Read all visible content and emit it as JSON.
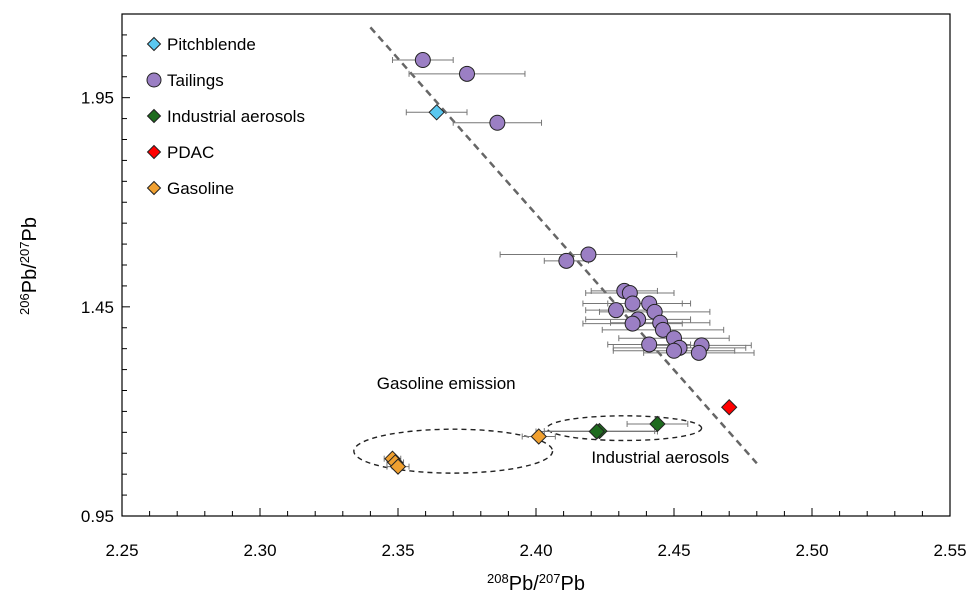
{
  "chart_data": {
    "type": "scatter",
    "title": "",
    "xlabel": {
      "base1": "",
      "sup1": "208",
      "mid": "Pb/",
      "sup2": "207",
      "end": "Pb"
    },
    "ylabel": {
      "sup1": "206",
      "mid": "Pb/",
      "sup2": "207",
      "end": "Pb"
    },
    "xlim": [
      2.25,
      2.55
    ],
    "ylim": [
      0.95,
      2.15
    ],
    "xticks": [
      "2.25",
      "2.30",
      "2.35",
      "2.40",
      "2.45",
      "2.50",
      "2.55"
    ],
    "yticks": [
      "0.95",
      "1.45",
      "1.95"
    ],
    "grid": false,
    "legend_position": "top-left",
    "series": [
      {
        "name": "Pitchblende",
        "marker": "diamond",
        "color": "#5bc8f0",
        "points": [
          {
            "x": 2.364,
            "y": 1.915,
            "xerr": 0.011
          }
        ]
      },
      {
        "name": "Tailings",
        "marker": "circle",
        "color": "#9b7fc4",
        "points": [
          {
            "x": 2.359,
            "y": 2.04,
            "xerr": 0.011
          },
          {
            "x": 2.375,
            "y": 2.007,
            "xerr": 0.021
          },
          {
            "x": 2.386,
            "y": 1.89,
            "xerr": 0.016
          },
          {
            "x": 2.411,
            "y": 1.56,
            "xerr": 0.008
          },
          {
            "x": 2.419,
            "y": 1.575,
            "xerr": 0.032
          },
          {
            "x": 2.432,
            "y": 1.488,
            "xerr": 0.012
          },
          {
            "x": 2.434,
            "y": 1.483,
            "xerr": 0.016
          },
          {
            "x": 2.435,
            "y": 1.458,
            "xerr": 0.018
          },
          {
            "x": 2.441,
            "y": 1.458,
            "xerr": 0.015
          },
          {
            "x": 2.429,
            "y": 1.442,
            "xerr": 0.011
          },
          {
            "x": 2.443,
            "y": 1.438,
            "xerr": 0.02
          },
          {
            "x": 2.437,
            "y": 1.42,
            "xerr": 0.019
          },
          {
            "x": 2.445,
            "y": 1.412,
            "xerr": 0.018
          },
          {
            "x": 2.435,
            "y": 1.41,
            "xerr": 0.018
          },
          {
            "x": 2.446,
            "y": 1.395,
            "xerr": 0.022
          },
          {
            "x": 2.45,
            "y": 1.375,
            "xerr": 0.02
          },
          {
            "x": 2.441,
            "y": 1.36,
            "xerr": 0.015
          },
          {
            "x": 2.452,
            "y": 1.352,
            "xerr": 0.024
          },
          {
            "x": 2.46,
            "y": 1.358,
            "xerr": 0.018
          },
          {
            "x": 2.45,
            "y": 1.345,
            "xerr": 0.022
          },
          {
            "x": 2.459,
            "y": 1.34,
            "xerr": 0.02
          }
        ]
      },
      {
        "name": "Industrial aerosols",
        "marker": "diamond",
        "color": "#1e6b1e",
        "points": [
          {
            "x": 2.423,
            "y": 1.153,
            "xerr": 0.02
          },
          {
            "x": 2.422,
            "y": 1.152,
            "xerr": 0.022
          },
          {
            "x": 2.444,
            "y": 1.17,
            "xerr": 0.011
          }
        ]
      },
      {
        "name": "PDAC",
        "marker": "diamond",
        "color": "#ff0000",
        "points": [
          {
            "x": 2.47,
            "y": 1.21,
            "xerr": 0
          }
        ]
      },
      {
        "name": "Gasoline",
        "marker": "diamond",
        "color": "#f0a030",
        "points": [
          {
            "x": 2.401,
            "y": 1.14,
            "xerr": 0.006
          },
          {
            "x": 2.348,
            "y": 1.087,
            "xerr": 0.003
          },
          {
            "x": 2.349,
            "y": 1.078,
            "xerr": 0.003
          },
          {
            "x": 2.35,
            "y": 1.068,
            "xerr": 0.004
          }
        ]
      }
    ],
    "trendline": {
      "style": "dashed",
      "color": "#666666",
      "points": [
        {
          "x": 2.34,
          "y": 2.118
        },
        {
          "x": 2.48,
          "y": 1.076
        }
      ]
    },
    "annotations": [
      {
        "text": "Gasoline emission",
        "ellipse": {
          "cx": 2.37,
          "cy": 1.105,
          "rx": 0.036,
          "ry": 0.105
        }
      },
      {
        "text": "Industrial aerosols",
        "ellipse": {
          "cx": 2.432,
          "cy": 1.16,
          "rx": 0.028,
          "ry": 0.059
        }
      }
    ]
  }
}
